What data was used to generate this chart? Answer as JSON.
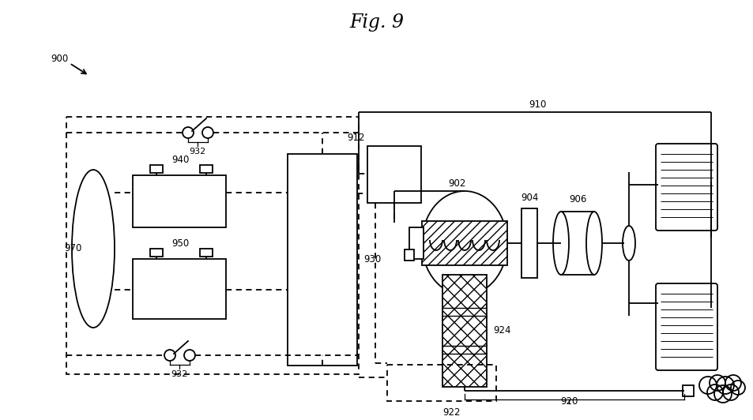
{
  "title": "Fig. 9",
  "bg": "#ffffff",
  "lc": "#000000",
  "lw": 1.3
}
